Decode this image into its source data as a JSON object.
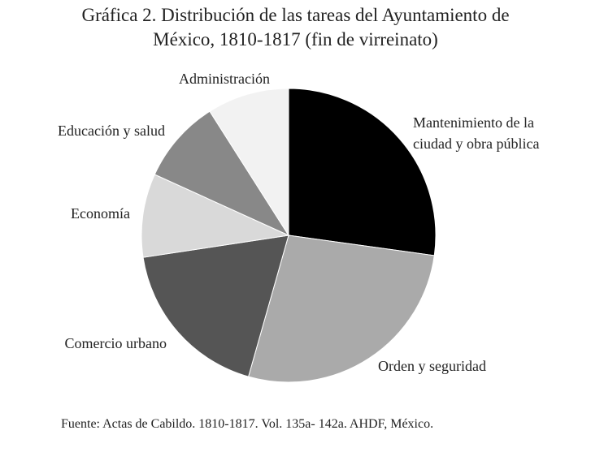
{
  "chart_data": {
    "type": "pie",
    "title": "Gráfica 2. Distribución de las tareas del Ayuntamiento de México, 1810-1817 (fin de virreinato)",
    "categories": [
      "Mantenimiento de la ciudad y obra pública",
      "Orden y seguridad",
      "Comercio urbano",
      "Economía",
      "Educación y salud",
      "Administración"
    ],
    "values": [
      27.2,
      27.2,
      18.2,
      9.2,
      9.2,
      9.0
    ],
    "colors": [
      "#000000",
      "#aaaaaa",
      "#555555",
      "#d9d9d9",
      "#888888",
      "#f2f2f2"
    ],
    "source": "Fuente: Actas de Cabildo. 1810-1817. Vol. 135a- 142a. AHDF, México."
  }
}
